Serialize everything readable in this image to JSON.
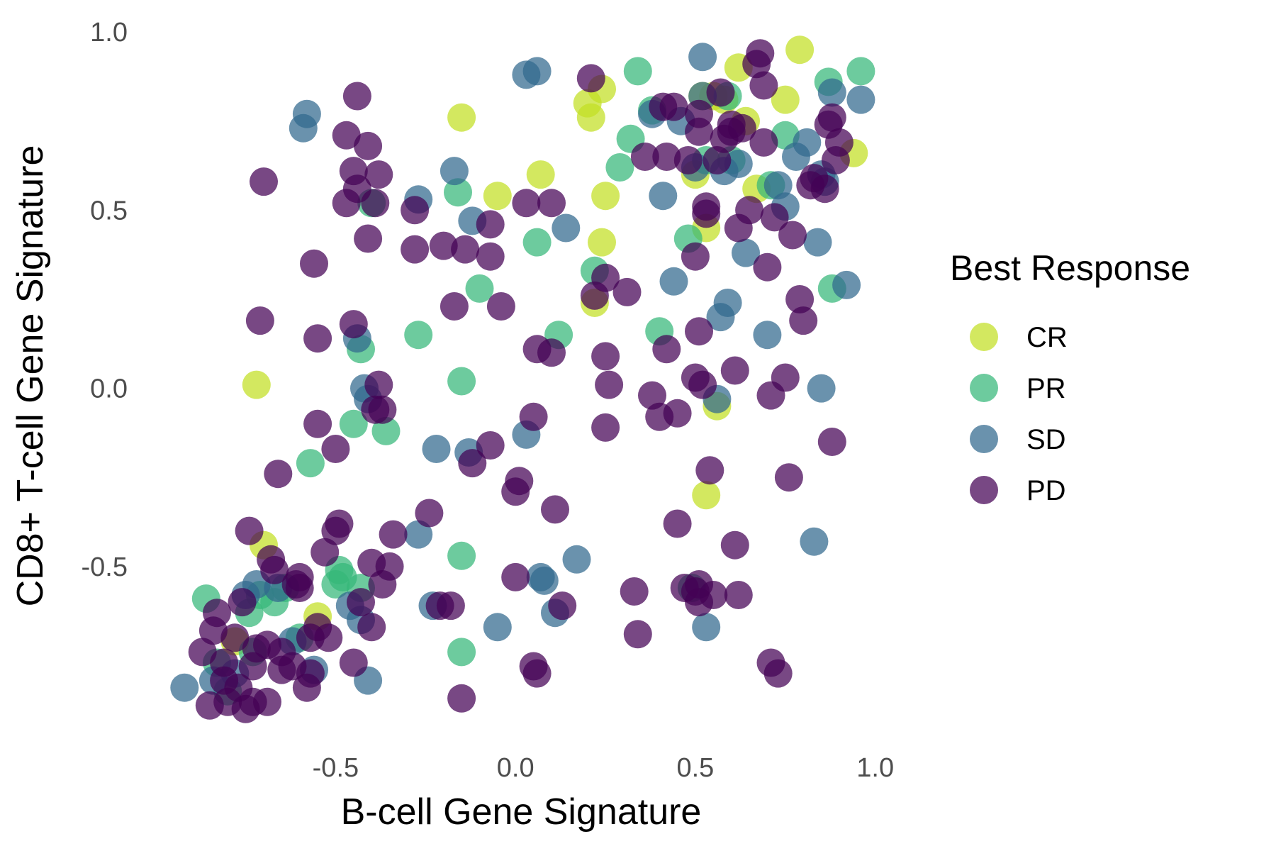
{
  "chart_data": {
    "type": "scatter",
    "xlabel": "B-cell Gene Signature",
    "ylabel": "CD8+ T-cell Gene Signature",
    "xlim": [
      -0.96,
      1.04
    ],
    "ylim": [
      -0.96,
      1.03
    ],
    "xticks": [
      -0.5,
      0.0,
      0.5,
      1.0
    ],
    "xtick_labels": [
      "-0.5",
      "0.0",
      "0.5",
      "1.0"
    ],
    "yticks": [
      -0.5,
      0.0,
      0.5,
      1.0
    ],
    "ytick_labels": [
      "-0.5",
      "0.0",
      "0.5",
      "1.0"
    ],
    "grid": false,
    "legend": {
      "title": "Best Response",
      "position": "right"
    },
    "series": [
      {
        "name": "CR",
        "color": "#c2df23",
        "points": [
          [
            -0.72,
            0.01
          ],
          [
            -0.7,
            -0.44
          ],
          [
            -0.55,
            -0.64
          ],
          [
            -0.15,
            0.76
          ],
          [
            -0.05,
            0.54
          ],
          [
            0.07,
            0.6
          ],
          [
            0.2,
            0.8
          ],
          [
            0.21,
            0.76
          ],
          [
            0.24,
            0.84
          ],
          [
            0.22,
            0.24
          ],
          [
            0.25,
            0.54
          ],
          [
            0.24,
            0.41
          ],
          [
            0.52,
            0.82
          ],
          [
            0.55,
            0.82
          ],
          [
            0.58,
            0.81
          ],
          [
            0.53,
            0.45
          ],
          [
            0.5,
            0.6
          ],
          [
            0.62,
            0.9
          ],
          [
            0.64,
            0.75
          ],
          [
            0.67,
            0.56
          ],
          [
            0.75,
            0.81
          ],
          [
            0.79,
            0.95
          ],
          [
            0.94,
            0.66
          ],
          [
            0.56,
            -0.05
          ],
          [
            0.53,
            -0.3
          ],
          [
            -0.78,
            -0.71
          ]
        ]
      },
      {
        "name": "PR",
        "color": "#35b779",
        "points": [
          [
            -0.4,
            0.52
          ],
          [
            -0.43,
            0.11
          ],
          [
            -0.36,
            -0.12
          ],
          [
            -0.45,
            -0.1
          ],
          [
            -0.57,
            -0.21
          ],
          [
            -0.49,
            -0.51
          ],
          [
            -0.48,
            -0.53
          ],
          [
            -0.43,
            -0.56
          ],
          [
            -0.5,
            -0.55
          ],
          [
            -0.27,
            0.15
          ],
          [
            -0.15,
            0.02
          ],
          [
            -0.1,
            0.28
          ],
          [
            0.06,
            0.41
          ],
          [
            0.12,
            0.15
          ],
          [
            -0.16,
            0.55
          ],
          [
            -0.15,
            -0.47
          ],
          [
            -0.15,
            -0.74
          ],
          [
            0.22,
            0.33
          ],
          [
            0.29,
            0.62
          ],
          [
            0.32,
            0.7
          ],
          [
            0.34,
            0.89
          ],
          [
            0.38,
            0.78
          ],
          [
            0.4,
            0.16
          ],
          [
            0.48,
            0.42
          ],
          [
            0.53,
            0.64
          ],
          [
            0.59,
            0.82
          ],
          [
            0.6,
            0.64
          ],
          [
            0.71,
            0.57
          ],
          [
            0.75,
            0.71
          ],
          [
            0.87,
            0.86
          ],
          [
            0.88,
            0.28
          ],
          [
            0.96,
            0.89
          ],
          [
            0.49,
            -0.56
          ],
          [
            -0.86,
            -0.59
          ],
          [
            -0.83,
            -0.77
          ],
          [
            -0.8,
            -0.85
          ],
          [
            -0.74,
            -0.63
          ],
          [
            -0.71,
            -0.58
          ],
          [
            -0.67,
            -0.6
          ],
          [
            -0.64,
            -0.56
          ],
          [
            -0.6,
            -0.7
          ],
          [
            -0.73,
            -0.74
          ]
        ]
      },
      {
        "name": "SD",
        "color": "#31688e",
        "points": [
          [
            -0.58,
            0.77
          ],
          [
            -0.59,
            0.73
          ],
          [
            -0.44,
            0.14
          ],
          [
            -0.42,
            0.0
          ],
          [
            -0.41,
            -0.03
          ],
          [
            -0.46,
            -0.61
          ],
          [
            -0.43,
            -0.65
          ],
          [
            -0.41,
            -0.82
          ],
          [
            -0.56,
            -0.79
          ],
          [
            -0.62,
            -0.71
          ],
          [
            -0.66,
            -0.56
          ],
          [
            -0.72,
            -0.55
          ],
          [
            -0.75,
            -0.58
          ],
          [
            -0.92,
            -0.84
          ],
          [
            -0.84,
            -0.82
          ],
          [
            -0.27,
            0.53
          ],
          [
            -0.17,
            0.61
          ],
          [
            -0.12,
            0.47
          ],
          [
            -0.22,
            -0.17
          ],
          [
            -0.13,
            -0.18
          ],
          [
            -0.27,
            -0.41
          ],
          [
            -0.23,
            -0.61
          ],
          [
            -0.05,
            -0.67
          ],
          [
            0.03,
            -0.13
          ],
          [
            0.06,
            0.89
          ],
          [
            0.03,
            0.88
          ],
          [
            0.14,
            0.45
          ],
          [
            0.08,
            -0.54
          ],
          [
            0.07,
            -0.53
          ],
          [
            0.11,
            -0.63
          ],
          [
            0.17,
            -0.48
          ],
          [
            0.38,
            0.77
          ],
          [
            0.41,
            0.54
          ],
          [
            0.46,
            0.75
          ],
          [
            0.44,
            0.3
          ],
          [
            0.5,
            0.62
          ],
          [
            0.52,
            0.93
          ],
          [
            0.52,
            0.82
          ],
          [
            0.57,
            0.2
          ],
          [
            0.59,
            0.24
          ],
          [
            0.58,
            0.61
          ],
          [
            0.62,
            0.63
          ],
          [
            0.64,
            0.38
          ],
          [
            0.7,
            0.15
          ],
          [
            0.73,
            0.57
          ],
          [
            0.75,
            0.51
          ],
          [
            0.78,
            0.65
          ],
          [
            0.81,
            0.69
          ],
          [
            0.84,
            0.41
          ],
          [
            0.83,
            -0.43
          ],
          [
            0.85,
            0.0
          ],
          [
            0.85,
            0.6
          ],
          [
            0.86,
            0.58
          ],
          [
            0.88,
            0.83
          ],
          [
            0.92,
            0.29
          ],
          [
            0.96,
            0.81
          ],
          [
            0.53,
            -0.67
          ],
          [
            0.56,
            -0.03
          ],
          [
            -0.78,
            -0.8
          ]
        ]
      },
      {
        "name": "PD",
        "color": "#440154",
        "points": [
          [
            -0.44,
            0.82
          ],
          [
            -0.47,
            0.71
          ],
          [
            -0.41,
            0.68
          ],
          [
            -0.45,
            0.61
          ],
          [
            -0.44,
            0.56
          ],
          [
            -0.47,
            0.52
          ],
          [
            -0.38,
            0.6
          ],
          [
            -0.39,
            0.52
          ],
          [
            -0.41,
            0.42
          ],
          [
            -0.7,
            0.58
          ],
          [
            -0.56,
            0.35
          ],
          [
            -0.71,
            0.19
          ],
          [
            -0.55,
            0.14
          ],
          [
            -0.45,
            0.18
          ],
          [
            -0.38,
            0.01
          ],
          [
            -0.55,
            -0.1
          ],
          [
            -0.5,
            -0.17
          ],
          [
            -0.39,
            -0.06
          ],
          [
            -0.37,
            -0.06
          ],
          [
            -0.66,
            -0.24
          ],
          [
            -0.74,
            -0.4
          ],
          [
            -0.68,
            -0.48
          ],
          [
            -0.67,
            -0.51
          ],
          [
            -0.6,
            -0.53
          ],
          [
            -0.6,
            -0.56
          ],
          [
            -0.53,
            -0.46
          ],
          [
            -0.49,
            -0.38
          ],
          [
            -0.5,
            -0.4
          ],
          [
            -0.4,
            -0.49
          ],
          [
            -0.35,
            -0.5
          ],
          [
            -0.37,
            -0.55
          ],
          [
            -0.43,
            -0.6
          ],
          [
            -0.4,
            -0.67
          ],
          [
            -0.45,
            -0.77
          ],
          [
            -0.55,
            -0.67
          ],
          [
            -0.57,
            -0.7
          ],
          [
            -0.58,
            -0.84
          ],
          [
            -0.52,
            -0.7
          ],
          [
            -0.57,
            -0.8
          ],
          [
            -0.62,
            -0.78
          ],
          [
            -0.65,
            -0.74
          ],
          [
            -0.69,
            -0.72
          ],
          [
            -0.69,
            -0.88
          ],
          [
            -0.73,
            -0.88
          ],
          [
            -0.75,
            -0.9
          ],
          [
            -0.77,
            -0.84
          ],
          [
            -0.8,
            -0.88
          ],
          [
            -0.81,
            -0.82
          ],
          [
            -0.81,
            -0.77
          ],
          [
            -0.84,
            -0.68
          ],
          [
            -0.83,
            -0.63
          ],
          [
            -0.76,
            -0.6
          ],
          [
            -0.72,
            -0.73
          ],
          [
            -0.73,
            -0.78
          ],
          [
            -0.65,
            -0.79
          ],
          [
            -0.78,
            -0.7
          ],
          [
            -0.87,
            -0.74
          ],
          [
            -0.85,
            -0.89
          ],
          [
            -0.28,
            0.5
          ],
          [
            -0.28,
            0.39
          ],
          [
            -0.2,
            0.4
          ],
          [
            -0.14,
            0.39
          ],
          [
            -0.07,
            0.46
          ],
          [
            -0.07,
            0.37
          ],
          [
            -0.17,
            0.23
          ],
          [
            -0.04,
            0.23
          ],
          [
            0.03,
            0.52
          ],
          [
            0.1,
            0.52
          ],
          [
            0.06,
            0.11
          ],
          [
            0.1,
            0.1
          ],
          [
            0.05,
            -0.08
          ],
          [
            0.01,
            -0.26
          ],
          [
            0.0,
            -0.29
          ],
          [
            0.11,
            -0.34
          ],
          [
            -0.07,
            -0.16
          ],
          [
            -0.12,
            -0.21
          ],
          [
            -0.24,
            -0.35
          ],
          [
            -0.34,
            -0.41
          ],
          [
            -0.21,
            -0.61
          ],
          [
            -0.18,
            -0.61
          ],
          [
            0.0,
            -0.53
          ],
          [
            0.13,
            -0.61
          ],
          [
            -0.15,
            -0.87
          ],
          [
            0.05,
            -0.78
          ],
          [
            0.06,
            -0.8
          ],
          [
            0.21,
            0.87
          ],
          [
            0.22,
            0.26
          ],
          [
            0.25,
            0.31
          ],
          [
            0.25,
            0.09
          ],
          [
            0.26,
            0.01
          ],
          [
            0.25,
            -0.11
          ],
          [
            0.31,
            0.27
          ],
          [
            0.33,
            -0.57
          ],
          [
            0.34,
            -0.69
          ],
          [
            0.36,
            0.65
          ],
          [
            0.38,
            -0.02
          ],
          [
            0.4,
            -0.08
          ],
          [
            0.41,
            0.79
          ],
          [
            0.42,
            0.65
          ],
          [
            0.42,
            0.11
          ],
          [
            0.44,
            0.79
          ],
          [
            0.45,
            -0.07
          ],
          [
            0.48,
            0.64
          ],
          [
            0.5,
            0.03
          ],
          [
            0.5,
            0.37
          ],
          [
            0.51,
            0.72
          ],
          [
            0.51,
            0.77
          ],
          [
            0.51,
            0.16
          ],
          [
            0.52,
            0.01
          ],
          [
            0.53,
            0.51
          ],
          [
            0.53,
            0.49
          ],
          [
            0.54,
            -0.23
          ],
          [
            0.56,
            0.64
          ],
          [
            0.57,
            0.83
          ],
          [
            0.58,
            0.7
          ],
          [
            0.6,
            0.72
          ],
          [
            0.61,
            0.05
          ],
          [
            0.6,
            0.74
          ],
          [
            0.61,
            -0.44
          ],
          [
            0.62,
            0.45
          ],
          [
            0.63,
            0.73
          ],
          [
            0.65,
            0.5
          ],
          [
            0.67,
            0.91
          ],
          [
            0.68,
            0.94
          ],
          [
            0.69,
            0.69
          ],
          [
            0.69,
            0.85
          ],
          [
            0.7,
            0.34
          ],
          [
            0.71,
            -0.77
          ],
          [
            0.71,
            -0.02
          ],
          [
            0.72,
            0.48
          ],
          [
            0.73,
            -0.8
          ],
          [
            0.75,
            0.03
          ],
          [
            0.77,
            0.43
          ],
          [
            0.8,
            0.19
          ],
          [
            0.79,
            0.25
          ],
          [
            0.82,
            0.57
          ],
          [
            0.83,
            0.59
          ],
          [
            0.86,
            0.56
          ],
          [
            0.87,
            0.74
          ],
          [
            0.88,
            0.76
          ],
          [
            0.89,
            0.64
          ],
          [
            0.9,
            0.69
          ],
          [
            0.88,
            -0.15
          ],
          [
            0.76,
            -0.25
          ],
          [
            0.45,
            -0.38
          ],
          [
            0.51,
            -0.55
          ],
          [
            0.55,
            -0.58
          ],
          [
            0.51,
            -0.6
          ],
          [
            0.62,
            -0.58
          ],
          [
            0.5,
            -0.57
          ],
          [
            0.47,
            -0.56
          ],
          [
            -0.61,
            -0.55
          ]
        ]
      }
    ]
  }
}
